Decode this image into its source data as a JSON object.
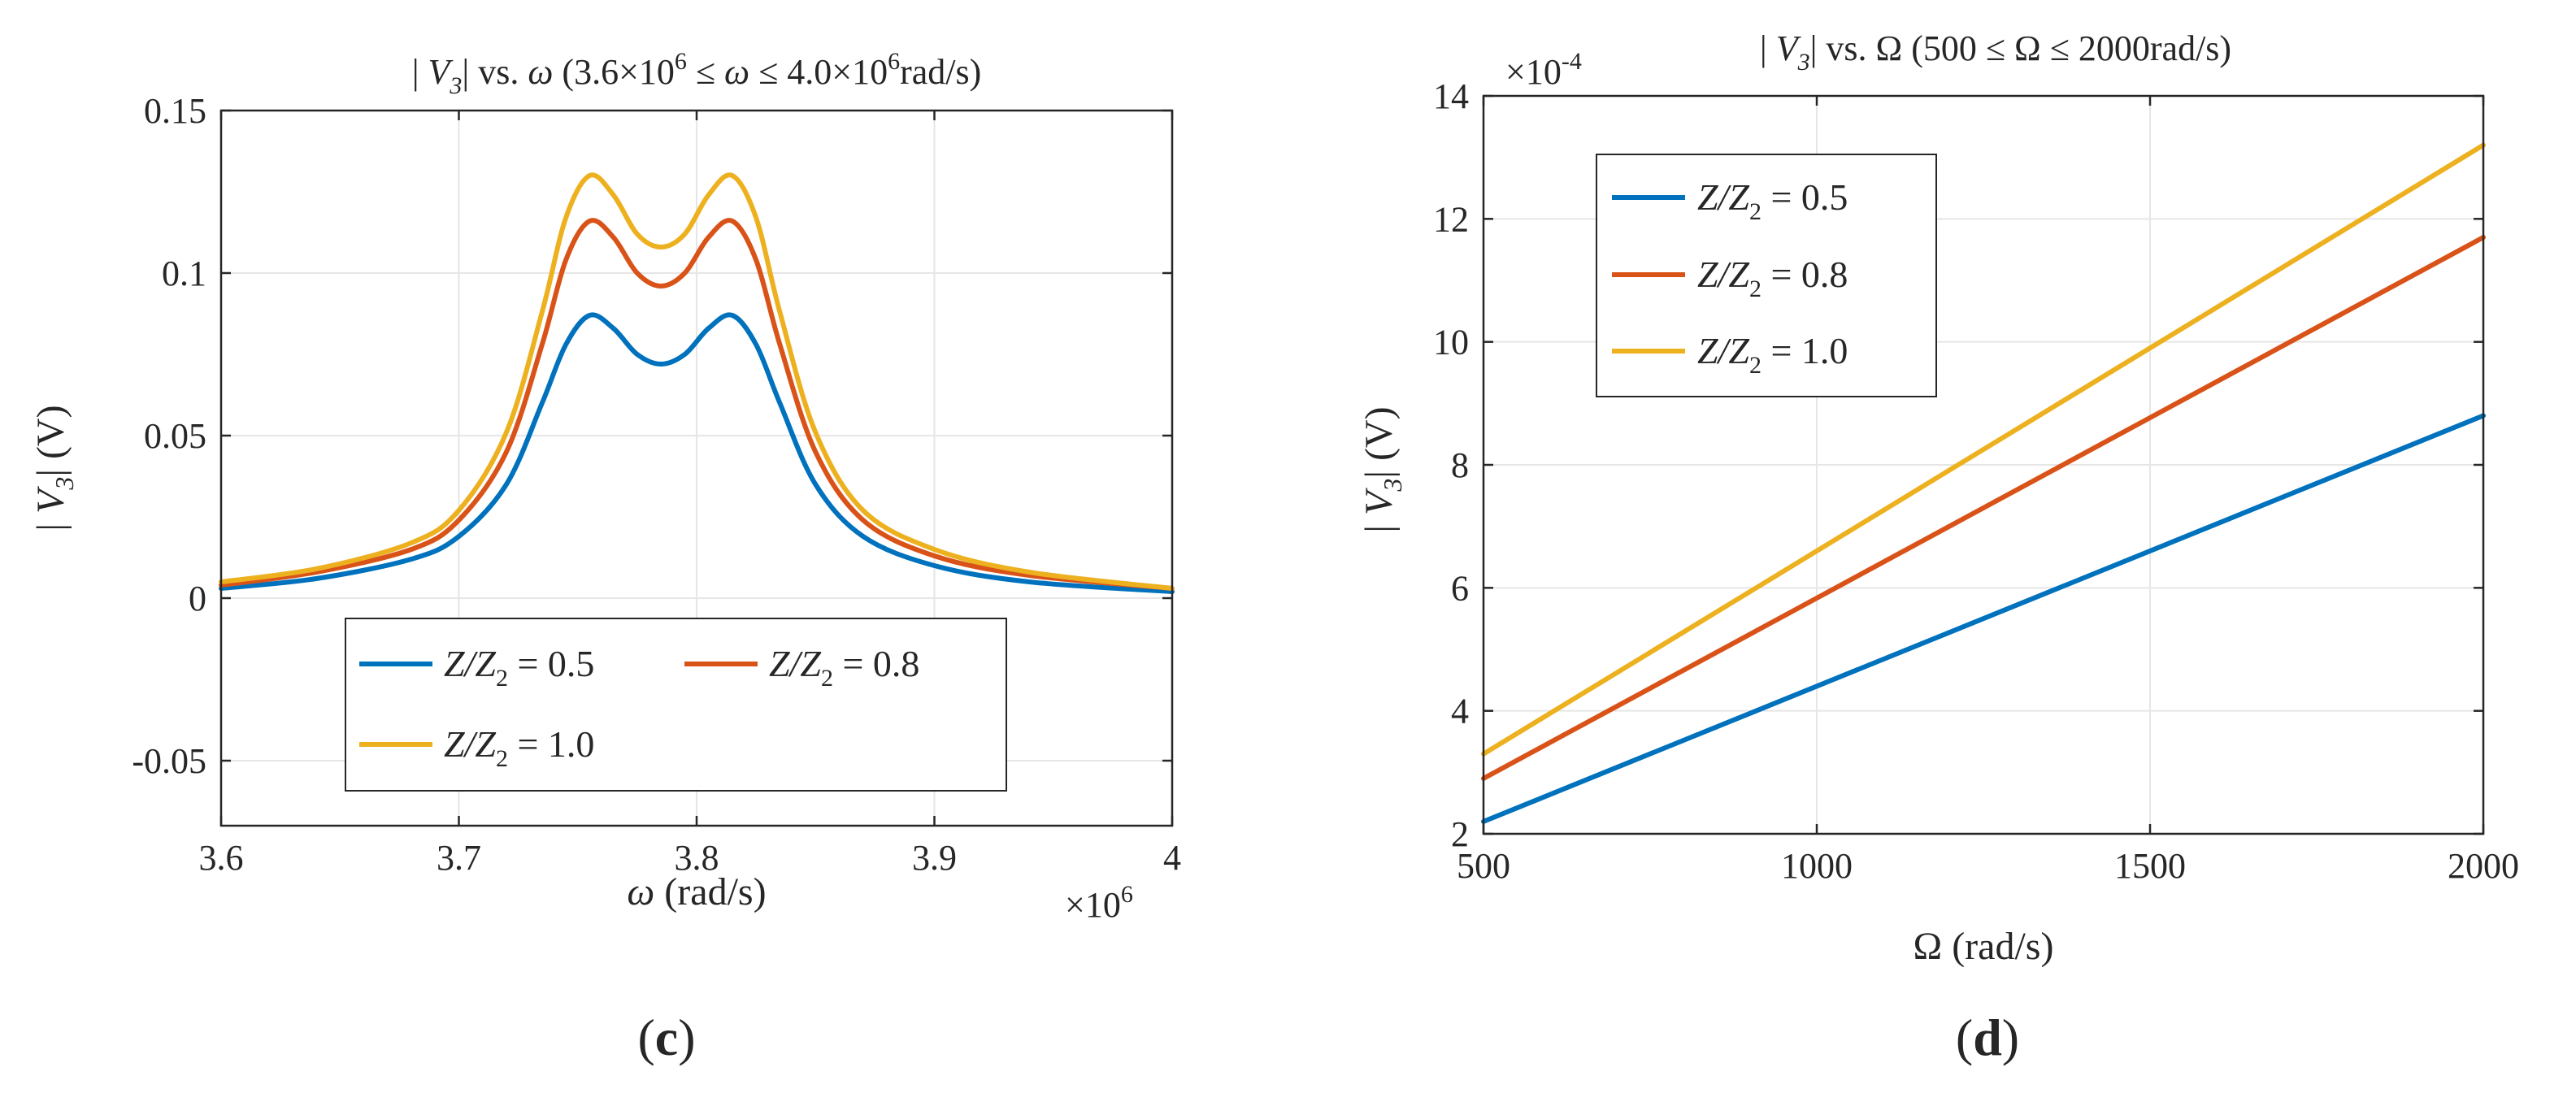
{
  "chart_data": [
    {
      "panel": "(c)",
      "type": "line",
      "title": "| V3| vs. ω (3.6×10^6 ≤ ω ≤ 4.0×10^6rad/s)",
      "xlabel": "ω (rad/s)",
      "ylabel": "| V3| (V)",
      "x_exponent": "×10^6",
      "xlim": [
        3.6,
        4.0
      ],
      "ylim": [
        -0.07,
        0.15
      ],
      "xticks": [
        3.6,
        3.7,
        3.8,
        3.9,
        4.0
      ],
      "xtick_labels": [
        "3.6",
        "3.7",
        "3.8",
        "3.9",
        "4"
      ],
      "yticks": [
        -0.05,
        0,
        0.05,
        0.1,
        0.15
      ],
      "ytick_labels": [
        "-0.05",
        "0",
        "0.05",
        "0.1",
        "0.15"
      ],
      "grid": true,
      "legend_position": "lower-center",
      "series": [
        {
          "name": "Z/Z2 = 0.5",
          "color": "#0072BD",
          "x": [
            3.6,
            3.64,
            3.68,
            3.7,
            3.72,
            3.735,
            3.745,
            3.755,
            3.765,
            3.775,
            3.785,
            3.795,
            3.805,
            3.815,
            3.825,
            3.835,
            3.85,
            3.87,
            3.9,
            3.94,
            4.0
          ],
          "y": [
            0.003,
            0.006,
            0.012,
            0.019,
            0.035,
            0.06,
            0.078,
            0.087,
            0.083,
            0.075,
            0.072,
            0.075,
            0.083,
            0.087,
            0.078,
            0.06,
            0.035,
            0.019,
            0.01,
            0.005,
            0.002
          ]
        },
        {
          "name": "Z/Z2 = 0.8",
          "color": "#D95319",
          "x": [
            3.6,
            3.64,
            3.68,
            3.7,
            3.72,
            3.735,
            3.745,
            3.755,
            3.765,
            3.775,
            3.785,
            3.795,
            3.805,
            3.815,
            3.825,
            3.835,
            3.85,
            3.87,
            3.9,
            3.94,
            4.0
          ],
          "y": [
            0.004,
            0.008,
            0.015,
            0.024,
            0.045,
            0.078,
            0.104,
            0.116,
            0.111,
            0.1,
            0.096,
            0.1,
            0.111,
            0.116,
            0.104,
            0.078,
            0.045,
            0.024,
            0.013,
            0.007,
            0.003
          ]
        },
        {
          "name": "Z/Z2 = 1.0",
          "color": "#EDB120",
          "x": [
            3.6,
            3.64,
            3.68,
            3.7,
            3.72,
            3.735,
            3.745,
            3.755,
            3.765,
            3.775,
            3.785,
            3.795,
            3.805,
            3.815,
            3.825,
            3.835,
            3.85,
            3.87,
            3.9,
            3.94,
            4.0
          ],
          "y": [
            0.005,
            0.009,
            0.017,
            0.027,
            0.051,
            0.088,
            0.117,
            0.13,
            0.124,
            0.112,
            0.108,
            0.112,
            0.124,
            0.13,
            0.117,
            0.088,
            0.051,
            0.027,
            0.015,
            0.008,
            0.003
          ]
        }
      ]
    },
    {
      "panel": "(d)",
      "type": "line",
      "title": "| V3| vs. Ω (500 ≤ Ω ≤ 2000rad/s)",
      "xlabel": "Ω (rad/s)",
      "ylabel": "| V3| (V)",
      "y_exponent": "×10^-4",
      "xlim": [
        500,
        2000
      ],
      "ylim": [
        2,
        14
      ],
      "xticks": [
        500,
        1000,
        1500,
        2000
      ],
      "xtick_labels": [
        "500",
        "1000",
        "1500",
        "2000"
      ],
      "yticks": [
        2,
        4,
        6,
        8,
        10,
        12,
        14
      ],
      "ytick_labels": [
        "2",
        "4",
        "6",
        "8",
        "10",
        "12",
        "14"
      ],
      "grid": true,
      "legend_position": "top-left",
      "series": [
        {
          "name": "Z/Z2 = 0.5",
          "color": "#0072BD",
          "x": [
            500,
            2000
          ],
          "y": [
            2.2,
            8.8
          ]
        },
        {
          "name": "Z/Z2 = 0.8",
          "color": "#D95319",
          "x": [
            500,
            2000
          ],
          "y": [
            2.9,
            11.7
          ]
        },
        {
          "name": "Z/Z2 = 1.0",
          "color": "#EDB120",
          "x": [
            500,
            2000
          ],
          "y": [
            3.3,
            13.2
          ]
        }
      ]
    }
  ],
  "captions": {
    "c_letter": "c",
    "d_letter": "d"
  },
  "text": {
    "c_title_pre": "| ",
    "c_title_v": "V",
    "c_title_sub": "3",
    "c_title_mid": "| vs. ",
    "c_title_omega": "ω",
    "c_title_range1": " (3.6×10",
    "c_title_exp1": "6",
    "c_title_range2": " ≤ ",
    "c_title_omega2": "ω",
    "c_title_range3": " ≤ 4.0×10",
    "c_title_exp2": "6",
    "c_title_units": "rad/s)",
    "c_xlabel_sym": "ω",
    "c_xlabel_units": " (rad/s)",
    "c_xexp_base": "×10",
    "c_xexp_pow": "6",
    "c_ylabel_pre": "| ",
    "c_ylabel_v": "V",
    "c_ylabel_sub": "3",
    "c_ylabel_post": "| (V)",
    "d_title_pre": "| ",
    "d_title_v": "V",
    "d_title_sub": "3",
    "d_title_rest": "| vs. Ω (500 ≤ Ω ≤ 2000rad/s)",
    "d_xlabel": "Ω (rad/s)",
    "d_yexp_base": "×10",
    "d_yexp_pow": "-4",
    "d_ylabel_pre": "| ",
    "d_ylabel_v": "V",
    "d_ylabel_sub": "3",
    "d_ylabel_post": "| (V)",
    "legend_z": "Z/Z",
    "legend_sub": "2",
    "legend_vals": [
      " = 0.5",
      " = 0.8",
      " = 1.0"
    ]
  }
}
